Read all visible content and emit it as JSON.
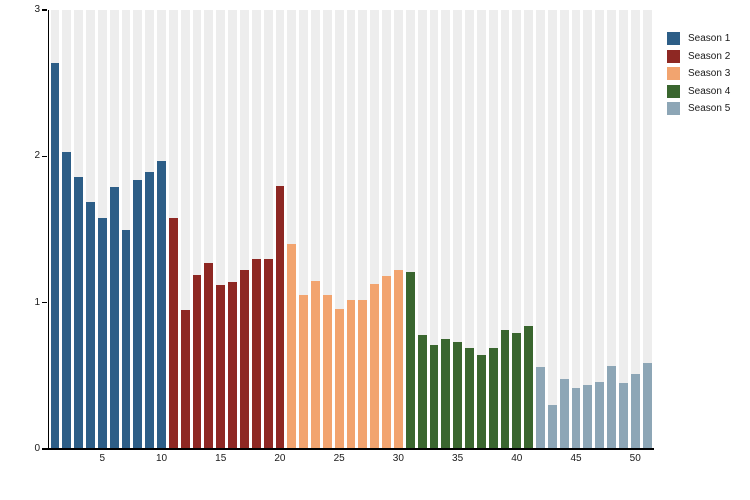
{
  "chart_data": {
    "type": "bar",
    "title": "",
    "xlabel": "",
    "ylabel": "",
    "ylim": [
      0,
      3
    ],
    "yticks": [
      "0",
      "1",
      "2",
      "3"
    ],
    "xticks": [
      5,
      10,
      15,
      20,
      25,
      30,
      35,
      40,
      45,
      50
    ],
    "x_unit": "episode",
    "episodes_total": 51,
    "grid": "vertical light-gray background stripe behind every episode bar",
    "legend_position": "top-right outside plot",
    "series": [
      {
        "name": "Season 1",
        "color": "#2d5e87",
        "first_episode": 1,
        "values": [
          2.64,
          2.03,
          1.86,
          1.69,
          1.58,
          1.79,
          1.5,
          1.84,
          1.89,
          1.97
        ]
      },
      {
        "name": "Season 2",
        "color": "#8e2823",
        "first_episode": 11,
        "values": [
          1.58,
          0.95,
          1.19,
          1.27,
          1.12,
          1.14,
          1.22,
          1.3,
          1.3,
          1.8
        ]
      },
      {
        "name": "Season 3",
        "color": "#f2a46f",
        "first_episode": 21,
        "values": [
          1.4,
          1.05,
          1.15,
          1.05,
          0.96,
          1.02,
          1.02,
          1.13,
          1.18,
          1.22
        ]
      },
      {
        "name": "Season 4",
        "color": "#3a662f",
        "first_episode": 31,
        "values": [
          1.21,
          0.78,
          0.71,
          0.75,
          0.73,
          0.69,
          0.64,
          0.69,
          0.81,
          0.79,
          0.84
        ]
      },
      {
        "name": "Season 5",
        "color": "#8da6b6",
        "first_episode": 42,
        "values": [
          0.56,
          0.3,
          0.48,
          0.42,
          0.44,
          0.46,
          0.57,
          0.45,
          0.51,
          0.59
        ]
      }
    ]
  },
  "colors": {
    "background": "#ffffff",
    "stripe": "#ededed",
    "axis": "#000000",
    "tick_text": "#1a1a1a"
  }
}
